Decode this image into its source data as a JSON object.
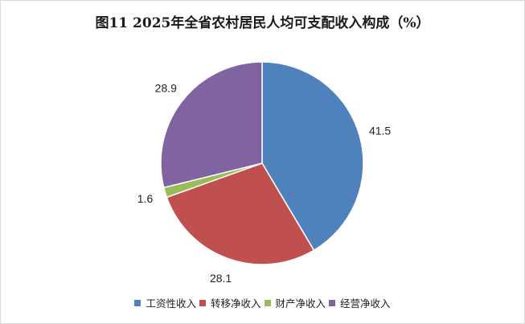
{
  "chart_data": {
    "type": "pie",
    "title": "图11  2025年全省农村居民人均可支配收入构成（%）",
    "categories": [
      "工资性收入",
      "转移净收入",
      "财产净收入",
      "经营净收入"
    ],
    "values": [
      41.5,
      28.1,
      1.6,
      28.9
    ],
    "data_labels": [
      "41.5",
      "28.1",
      "1.6",
      "28.9"
    ],
    "colors": [
      "#4f81bd",
      "#c0504d",
      "#9bbb59",
      "#8064a2"
    ],
    "start_angle_deg": 0,
    "direction": "clockwise",
    "legend_position": "bottom"
  }
}
